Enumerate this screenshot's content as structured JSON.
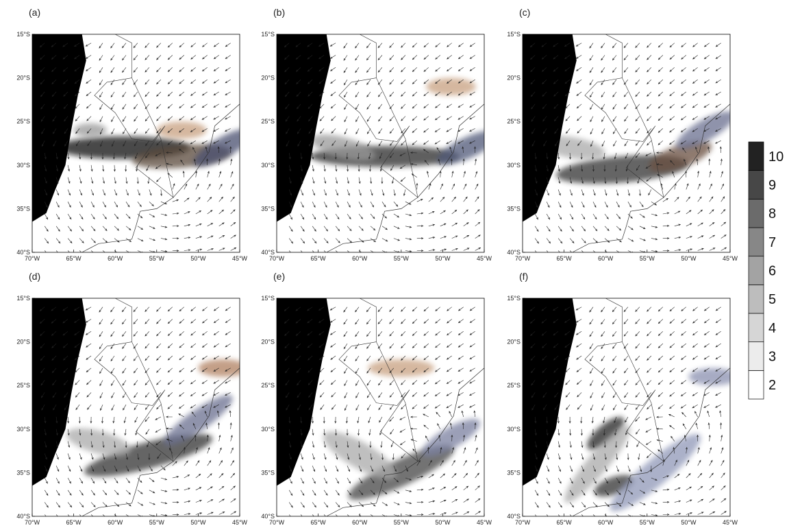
{
  "panels": [
    {
      "label": "(a)"
    },
    {
      "label": "(b)"
    },
    {
      "label": "(c)"
    },
    {
      "label": "(d)"
    },
    {
      "label": "(e)"
    },
    {
      "label": "(f)"
    }
  ],
  "xlim": [
    -70,
    -45
  ],
  "ylim": [
    -40,
    -15
  ],
  "xticks": [
    {
      "value": -70,
      "label": "70°W"
    },
    {
      "value": -65,
      "label": "65°W"
    },
    {
      "value": -60,
      "label": "60°W"
    },
    {
      "value": -55,
      "label": "55°W"
    },
    {
      "value": -50,
      "label": "50°W"
    },
    {
      "value": -45,
      "label": "45°W"
    }
  ],
  "yticks": [
    {
      "value": -15,
      "label": "15°S"
    },
    {
      "value": -20,
      "label": "20°S"
    },
    {
      "value": -25,
      "label": "25°S"
    },
    {
      "value": -30,
      "label": "30°S"
    },
    {
      "value": -35,
      "label": "35°S"
    },
    {
      "value": -40,
      "label": "40°S"
    }
  ],
  "colorbar": {
    "levels": [
      2,
      3,
      4,
      5,
      6,
      7,
      8,
      9,
      10
    ],
    "colors": [
      "#ffffff",
      "#ececec",
      "#d6d6d6",
      "#bdbdbd",
      "#a3a3a3",
      "#878787",
      "#6b6b6b",
      "#474747",
      "#222222"
    ]
  }
}
